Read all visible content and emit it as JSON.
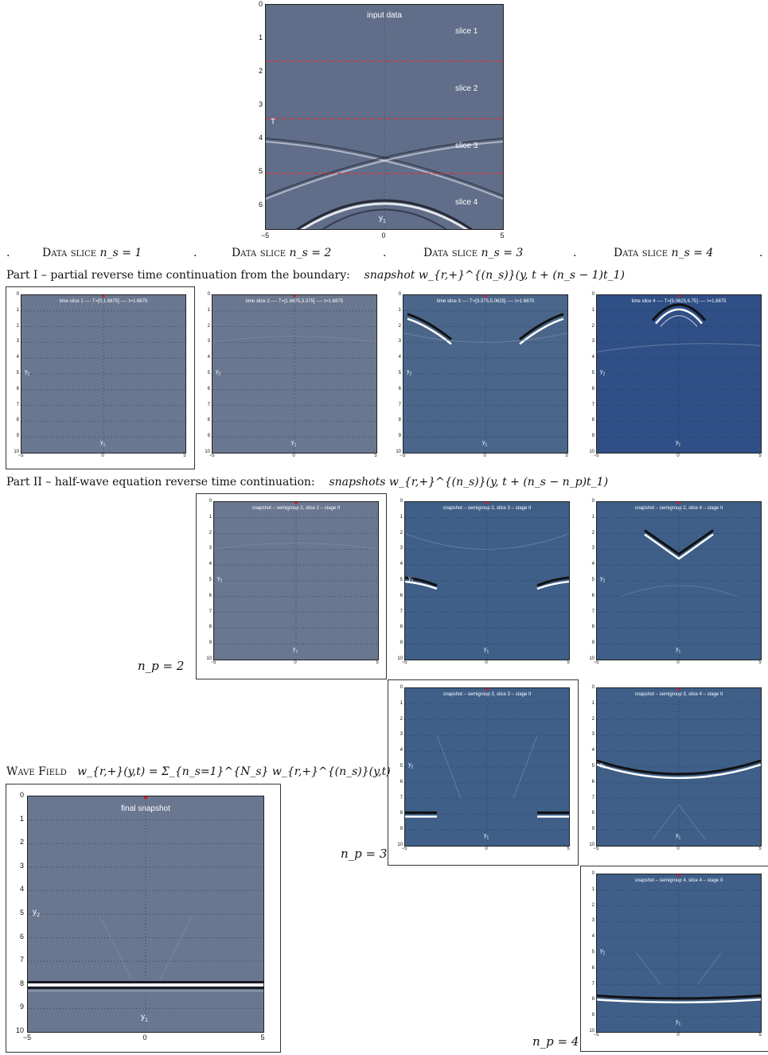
{
  "input": {
    "title": "input data",
    "slices": [
      "slice 1",
      "slice 2",
      "slice 3",
      "slice 4"
    ],
    "marker_T": "T",
    "ylabel": "y",
    "ylabel_sub": "1",
    "yticks": [
      "0",
      "1",
      "2",
      "3",
      "4",
      "5",
      "6"
    ],
    "xticks": [
      "−5",
      "0",
      "5"
    ],
    "color_field": "#606e8a",
    "color_dashed": "#e03030"
  },
  "row_labels": {
    "dot": ".",
    "data_slice_prefix": "Data slice",
    "ns_1": "n_s = 1",
    "ns_2": "n_s = 2",
    "ns_3": "n_s = 3",
    "ns_4": "n_s = 4",
    "part1": "Part I – partial reverse time continuation from the boundary:",
    "part1_formula": "snapshot w_{r,+}^{(n_s)}(y, t + (n_s − 1)t_1)",
    "part2": "Part II – half-wave equation reverse time continuation:",
    "part2_formula": "snapshots w_{r,+}^{(n_s)}(y, t + (n_s − n_p)t_1)",
    "np2": "n_p = 2",
    "np3": "n_p = 3",
    "np4": "n_p = 4",
    "wavefield_prefix": "Wave Field",
    "wavefield_formula": "w_{r,+}(y,t) = Σ_{n_s=1}^{N_s} w_{r,+}^{(n_s)}(y,t)"
  },
  "small_axes": {
    "yticks": [
      "0",
      "1",
      "2",
      "3",
      "4",
      "5",
      "6",
      "7",
      "8",
      "9",
      "10"
    ],
    "xticks": [
      "−5",
      "0",
      "5"
    ],
    "y2": "y",
    "y2_sub": "2",
    "y1": "y",
    "y1_sub": "1"
  },
  "part1_titles": [
    "time slice 1 ---- T=[0,1.6875] ---- τ=1.6875",
    "time slice 2 ---- T=[1.6875,3.375] ---- τ=1.6875",
    "time slice 3 ---- T=[3.375,5.0625] ---- τ=1.6875",
    "time slice 4 ---- T=[5.0625,6.75] ---- τ=1.6875"
  ],
  "part2_titles": {
    "s22": "snapshot – semigroup 2, slice 2 – stage II",
    "s23": "snapshot – semigroup 2, slice 3 – stage II",
    "s24": "snapshot – semigroup 2, slice 4 – stage II",
    "s33": "snapshot – semigroup 3, slice 3 – stage II",
    "s34": "snapshot – semigroup 3, slice 4 – stage II",
    "s44": "snapshot – semigroup 4, slice 4 – stage II"
  },
  "final": {
    "title": "final snapshot"
  },
  "colors": {
    "gray_blue": "#6a7790",
    "mid_blue": "#4a668a",
    "deep_blue": "#2f4f86",
    "stage_blue": "#3f5f88"
  }
}
